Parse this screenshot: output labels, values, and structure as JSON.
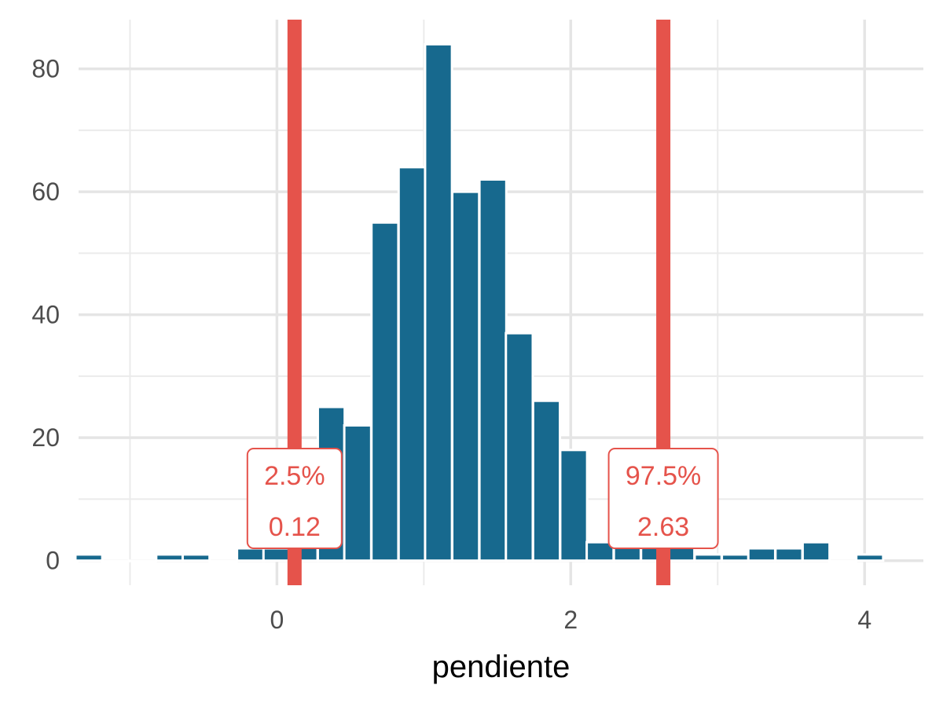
{
  "chart_data": {
    "type": "bar",
    "xlabel": "pendiente",
    "ylabel": "",
    "title": "",
    "xlim": [
      -1.35,
      4.4
    ],
    "ylim": [
      -4,
      88
    ],
    "x_ticks": [
      0,
      2,
      4
    ],
    "y_ticks": [
      0,
      20,
      40,
      60,
      80
    ],
    "grid": true,
    "bin_width": 0.183,
    "bins": [
      {
        "x": -1.28,
        "y": 1
      },
      {
        "x": -1.1,
        "y": 0
      },
      {
        "x": -0.915,
        "y": 0
      },
      {
        "x": -0.73,
        "y": 1
      },
      {
        "x": -0.55,
        "y": 1
      },
      {
        "x": -0.365,
        "y": 0
      },
      {
        "x": -0.18,
        "y": 2
      },
      {
        "x": 0.0,
        "y": 2
      },
      {
        "x": 0.185,
        "y": 4
      },
      {
        "x": 0.37,
        "y": 25
      },
      {
        "x": 0.55,
        "y": 22
      },
      {
        "x": 0.735,
        "y": 55
      },
      {
        "x": 0.92,
        "y": 64
      },
      {
        "x": 1.1,
        "y": 84
      },
      {
        "x": 1.285,
        "y": 60
      },
      {
        "x": 1.47,
        "y": 62
      },
      {
        "x": 1.65,
        "y": 37
      },
      {
        "x": 1.835,
        "y": 26
      },
      {
        "x": 2.02,
        "y": 18
      },
      {
        "x": 2.2,
        "y": 3
      },
      {
        "x": 2.385,
        "y": 3
      },
      {
        "x": 2.57,
        "y": 3
      },
      {
        "x": 2.75,
        "y": 3
      },
      {
        "x": 2.935,
        "y": 1
      },
      {
        "x": 3.12,
        "y": 1
      },
      {
        "x": 3.3,
        "y": 2
      },
      {
        "x": 3.485,
        "y": 2
      },
      {
        "x": 3.67,
        "y": 3
      },
      {
        "x": 3.85,
        "y": 0
      },
      {
        "x": 4.035,
        "y": 1
      }
    ],
    "bar_color": "#17698e",
    "vlines": [
      {
        "x": 0.12,
        "color": "#e5534b"
      },
      {
        "x": 2.63,
        "color": "#e5534b"
      }
    ],
    "annotations": [
      {
        "x": 0.12,
        "line1": "2.5%",
        "line2": "0.12"
      },
      {
        "x": 2.63,
        "line1": "97.5%",
        "line2": "2.63"
      }
    ]
  }
}
